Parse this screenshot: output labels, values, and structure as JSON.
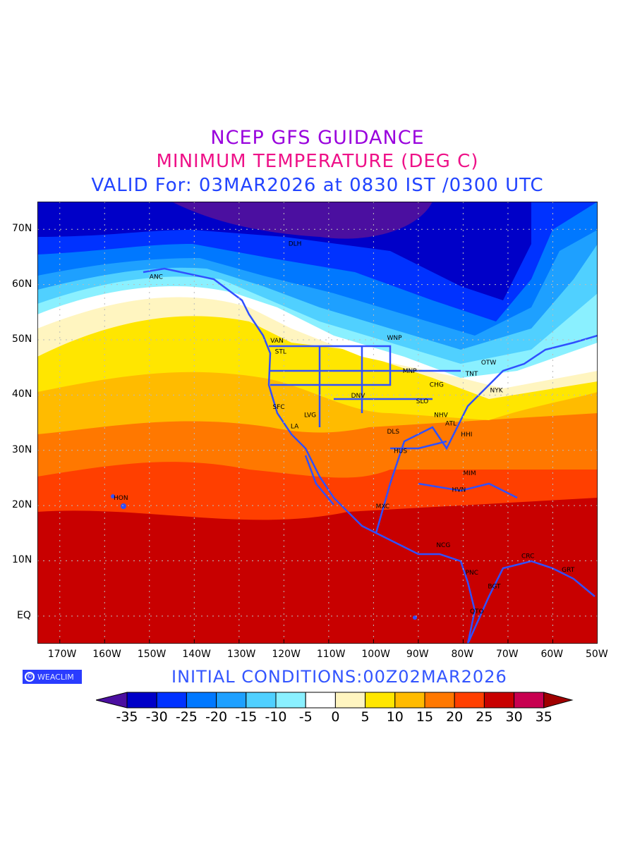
{
  "title": {
    "line1": "NCEP GFS GUIDANCE",
    "line2": "MINIMUM TEMPERATURE (DEG C)",
    "line3": "VALID For: 03MAR2026 at 0830 IST /0300 UTC"
  },
  "axes": {
    "lat_labels": [
      "70N",
      "60N",
      "50N",
      "40N",
      "30N",
      "20N",
      "10N",
      "EQ"
    ],
    "lon_labels": [
      "170W",
      "160W",
      "150W",
      "140W",
      "130W",
      "120W",
      "110W",
      "100W",
      "90W",
      "80W",
      "70W",
      "60W",
      "50W"
    ]
  },
  "cities": [
    "DLH",
    "ANC",
    "VAN",
    "STL",
    "WNP",
    "OTW",
    "TNT",
    "MNP",
    "CHG",
    "NYK",
    "DNV",
    "SLO",
    "SFC",
    "LVG",
    "LA",
    "NHV",
    "ATL",
    "DLS",
    "HHI",
    "HUS",
    "MIM",
    "HVN",
    "HON",
    "MXC",
    "NCG",
    "CRC",
    "PNC",
    "GRT",
    "BGT",
    "QTO"
  ],
  "logo": {
    "symbol": "©",
    "text": "WEACLIM"
  },
  "initial_conditions": "INITIAL  CONDITIONS:00Z02MAR2026",
  "colorbar": {
    "labels": [
      "-35",
      "-30",
      "-25",
      "-20",
      "-15",
      "-10",
      "-5",
      "0",
      "5",
      "10",
      "15",
      "20",
      "25",
      "30",
      "35"
    ],
    "colors": [
      "#4b0fa0",
      "#0000c8",
      "#0032ff",
      "#0078ff",
      "#1ea0ff",
      "#50d0ff",
      "#8af0ff",
      "#ffffff",
      "#fff5c0",
      "#ffe600",
      "#ffbb00",
      "#ff7800",
      "#ff3f00",
      "#c80000",
      "#c80050",
      "#a00000"
    ]
  }
}
